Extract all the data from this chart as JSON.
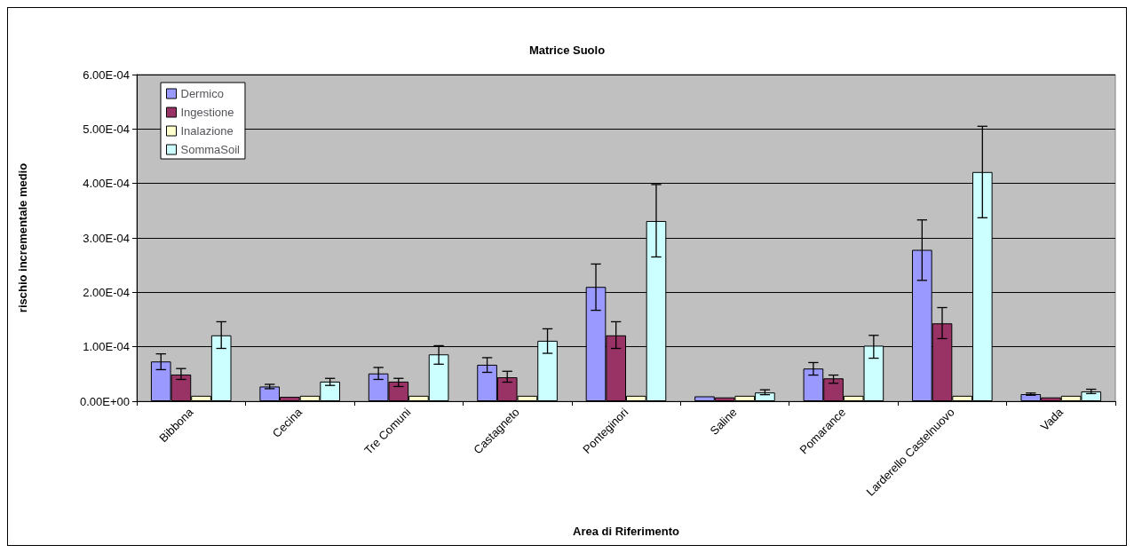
{
  "chart_data": {
    "type": "bar",
    "title": "Matrice Suolo",
    "xlabel": "Area di Riferimento",
    "ylabel": "rischio incrementale medio",
    "categories": [
      "Bibbona",
      "Cecina",
      "Tre Comuni",
      "Castagneto",
      "Ponteginori",
      "Saline",
      "Pomarance",
      "Larderello Castelnuovo",
      "Vada"
    ],
    "series": [
      {
        "name": "Dermico",
        "color": "#9999ff",
        "values": [
          7.3e-05,
          2.7e-05,
          5.1e-05,
          6.7e-05,
          0.00021,
          9e-06,
          6e-05,
          0.000278,
          1.3e-05
        ],
        "errors": [
          [
            5.8e-05,
            8.7e-05
          ],
          [
            2.3e-05,
            3.1e-05
          ],
          [
            4e-05,
            6.2e-05
          ],
          [
            5.3e-05,
            8e-05
          ],
          [
            0.000167,
            0.000252
          ],
          null,
          [
            4.8e-05,
            7.1e-05
          ],
          [
            0.000222,
            0.000333
          ],
          [
            1.1e-05,
            1.5e-05
          ]
        ]
      },
      {
        "name": "Ingestione",
        "color": "#993366",
        "values": [
          4.9e-05,
          8e-06,
          3.6e-05,
          4.4e-05,
          0.000121,
          7e-06,
          4.2e-05,
          0.000143,
          7e-06
        ],
        "errors": [
          [
            4e-05,
            6e-05
          ],
          null,
          [
            2.7e-05,
            4.2e-05
          ],
          [
            3.5e-05,
            5.5e-05
          ],
          [
            9.7e-05,
            0.000146
          ],
          null,
          [
            3.3e-05,
            4.8e-05
          ],
          [
            0.000115,
            0.000172
          ],
          null
        ]
      },
      {
        "name": "Inalazione",
        "color": "#ffffcc",
        "values": [
          1e-05,
          1e-05,
          1e-05,
          1e-05,
          1e-05,
          1e-05,
          1e-05,
          1e-05,
          1e-05
        ]
      },
      {
        "name": "SommaSoil",
        "color": "#ccffff",
        "values": [
          0.000121,
          3.6e-05,
          8.6e-05,
          0.000111,
          0.000331,
          1.6e-05,
          0.000102,
          0.000421,
          1.8e-05
        ],
        "errors": [
          [
            9.7e-05,
            0.000146
          ],
          [
            2.9e-05,
            4.2e-05
          ],
          [
            6.8e-05,
            0.000102
          ],
          [
            8.8e-05,
            0.000133
          ],
          [
            0.000265,
            0.000398
          ],
          [
            1.2e-05,
            2.1e-05
          ],
          [
            7.9e-05,
            0.000121
          ],
          [
            0.000337,
            0.000505
          ],
          [
            1.4e-05,
            2.2e-05
          ]
        ]
      }
    ],
    "ylim": [
      0,
      0.0006
    ],
    "yticks": [
      {
        "value": 0,
        "label": "0.00E+00"
      },
      {
        "value": 0.0001,
        "label": "1.00E-04"
      },
      {
        "value": 0.0002,
        "label": "2.00E-04"
      },
      {
        "value": 0.0003,
        "label": "3.00E-04"
      },
      {
        "value": 0.0004,
        "label": "4.00E-04"
      },
      {
        "value": 0.0005,
        "label": "5.00E-04"
      },
      {
        "value": 0.0006,
        "label": "6.00E-04"
      }
    ],
    "grid": "y",
    "legend": "top left"
  }
}
